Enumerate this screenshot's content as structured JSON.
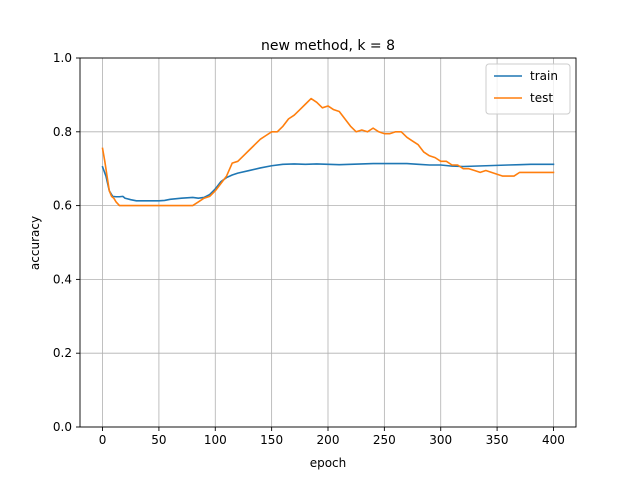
{
  "chart_data": {
    "type": "line",
    "title": "new method, k = 8",
    "xlabel": "epoch",
    "ylabel": "accuracy",
    "xlim": [
      -20,
      420
    ],
    "ylim": [
      0.0,
      1.0
    ],
    "x_ticks": [
      0,
      50,
      100,
      150,
      200,
      250,
      300,
      350,
      400
    ],
    "x_tick_labels": [
      "0",
      "50",
      "100",
      "150",
      "200",
      "250",
      "300",
      "350",
      "400"
    ],
    "y_ticks": [
      0.0,
      0.2,
      0.4,
      0.6,
      0.8,
      1.0
    ],
    "y_tick_labels": [
      "0.0",
      "0.2",
      "0.4",
      "0.6",
      "0.8",
      "1.0"
    ],
    "grid": true,
    "legend_position": "top-right",
    "series": [
      {
        "name": "train",
        "color": "#1f77b4",
        "x": [
          0,
          3,
          6,
          9,
          12,
          15,
          18,
          20,
          25,
          30,
          40,
          50,
          55,
          60,
          70,
          80,
          85,
          90,
          95,
          100,
          105,
          110,
          115,
          120,
          130,
          140,
          150,
          160,
          170,
          180,
          190,
          200,
          210,
          220,
          230,
          240,
          250,
          260,
          270,
          280,
          290,
          300,
          310,
          320,
          330,
          340,
          350,
          360,
          370,
          380,
          390,
          400
        ],
        "y": [
          0.705,
          0.68,
          0.64,
          0.625,
          0.624,
          0.624,
          0.625,
          0.62,
          0.616,
          0.613,
          0.613,
          0.613,
          0.614,
          0.617,
          0.62,
          0.622,
          0.62,
          0.622,
          0.63,
          0.645,
          0.665,
          0.676,
          0.683,
          0.688,
          0.695,
          0.702,
          0.708,
          0.712,
          0.713,
          0.712,
          0.713,
          0.712,
          0.711,
          0.712,
          0.713,
          0.714,
          0.714,
          0.714,
          0.714,
          0.712,
          0.71,
          0.71,
          0.707,
          0.706,
          0.707,
          0.708,
          0.709,
          0.71,
          0.711,
          0.712,
          0.712,
          0.712
        ]
      },
      {
        "name": "test",
        "color": "#ff7f0e",
        "x": [
          0,
          2,
          4,
          6,
          8,
          10,
          12,
          15,
          20,
          30,
          40,
          50,
          60,
          70,
          80,
          85,
          90,
          95,
          100,
          105,
          110,
          115,
          120,
          125,
          130,
          135,
          140,
          145,
          150,
          155,
          160,
          165,
          170,
          175,
          180,
          185,
          190,
          195,
          200,
          205,
          210,
          215,
          220,
          225,
          230,
          235,
          240,
          245,
          250,
          255,
          260,
          265,
          270,
          275,
          280,
          285,
          290,
          295,
          300,
          305,
          310,
          315,
          320,
          325,
          330,
          335,
          340,
          345,
          350,
          355,
          360,
          365,
          370,
          375,
          380,
          385,
          390,
          395,
          400
        ],
        "y": [
          0.755,
          0.72,
          0.68,
          0.64,
          0.625,
          0.62,
          0.61,
          0.6,
          0.6,
          0.6,
          0.6,
          0.6,
          0.6,
          0.6,
          0.6,
          0.61,
          0.62,
          0.625,
          0.64,
          0.66,
          0.68,
          0.715,
          0.72,
          0.735,
          0.75,
          0.765,
          0.78,
          0.79,
          0.8,
          0.8,
          0.815,
          0.835,
          0.845,
          0.86,
          0.875,
          0.89,
          0.88,
          0.865,
          0.87,
          0.86,
          0.855,
          0.835,
          0.815,
          0.8,
          0.805,
          0.8,
          0.81,
          0.8,
          0.795,
          0.795,
          0.8,
          0.8,
          0.785,
          0.775,
          0.765,
          0.745,
          0.735,
          0.73,
          0.72,
          0.72,
          0.71,
          0.71,
          0.7,
          0.7,
          0.695,
          0.69,
          0.695,
          0.69,
          0.685,
          0.68,
          0.68,
          0.68,
          0.69,
          0.69,
          0.69,
          0.69,
          0.69,
          0.69,
          0.69
        ]
      }
    ]
  }
}
